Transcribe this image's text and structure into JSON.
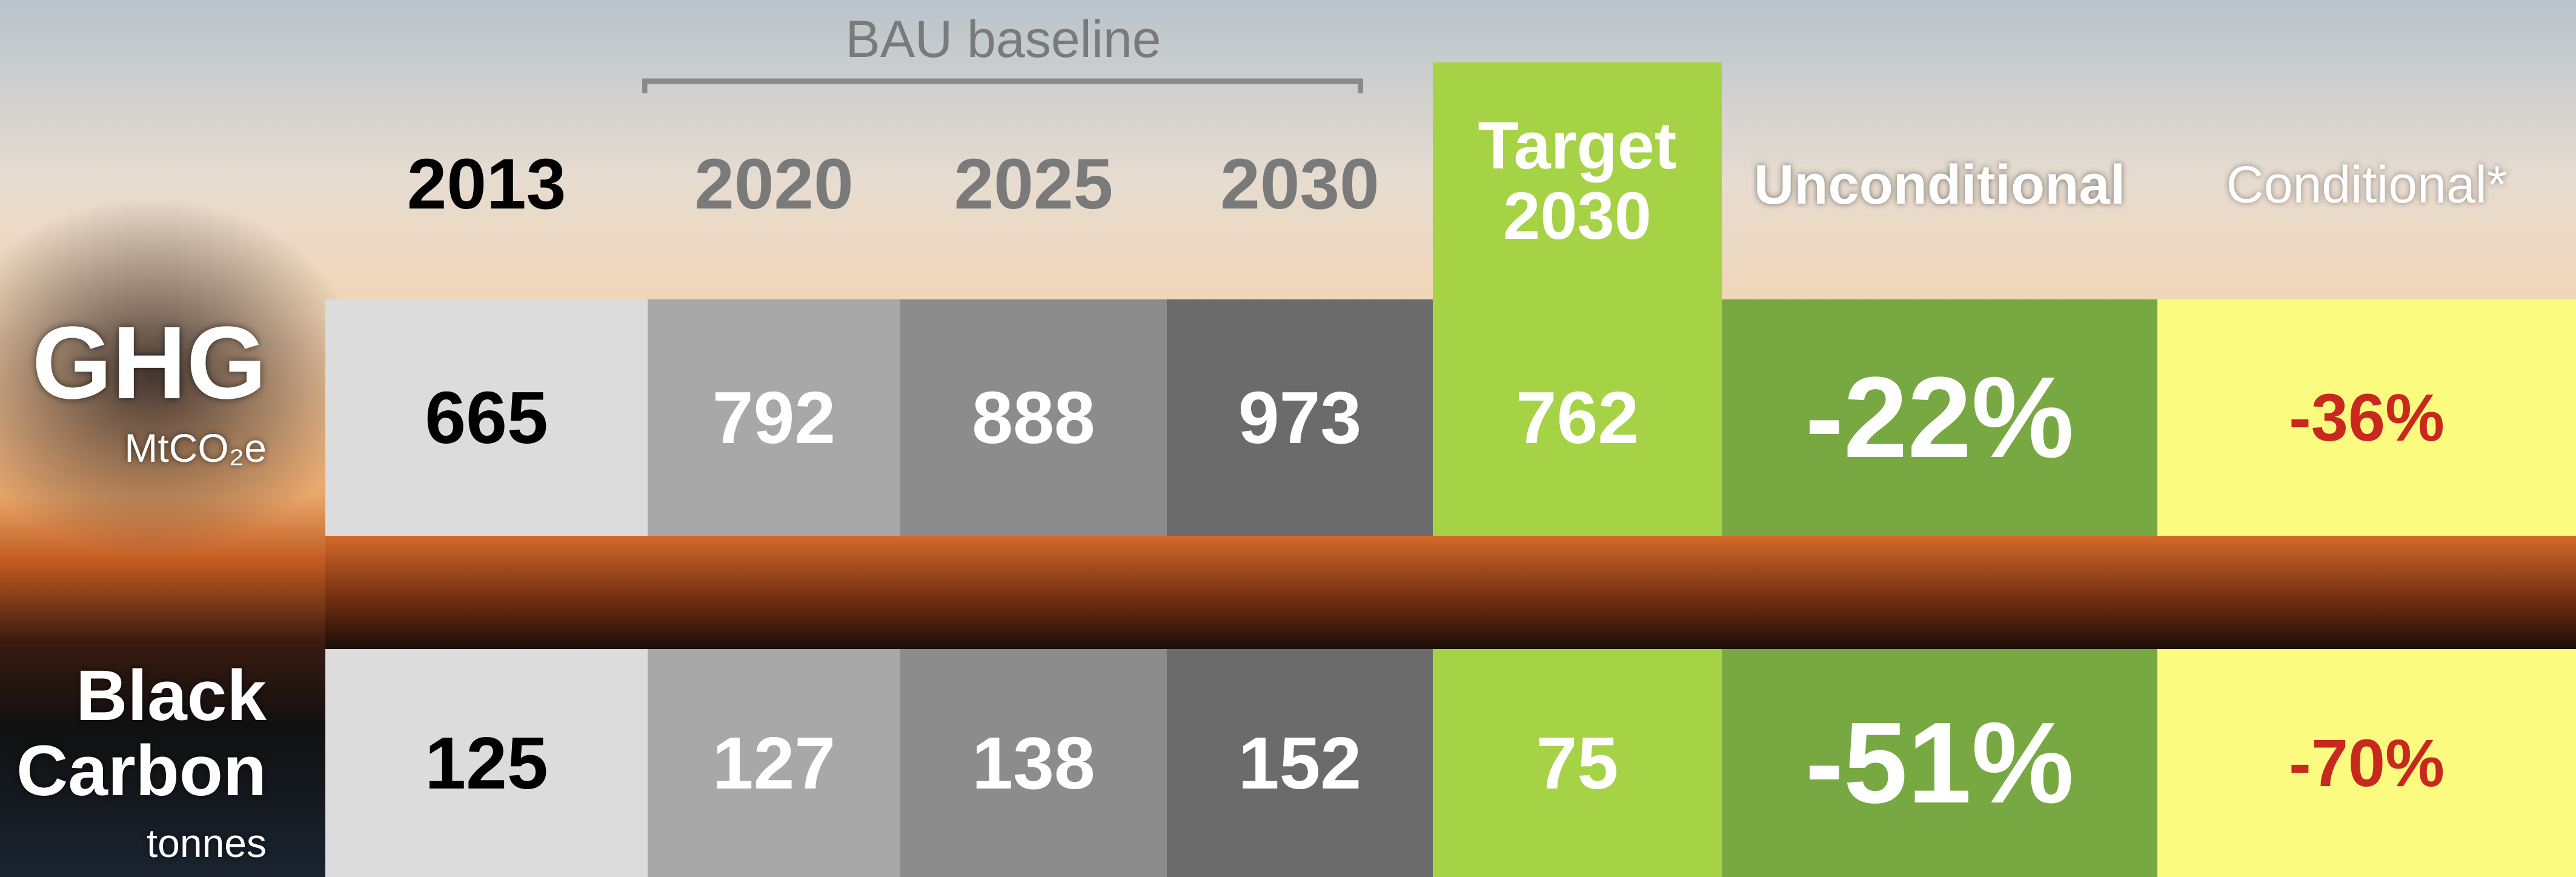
{
  "header": {
    "bau_label": "BAU baseline",
    "columns": [
      "2013",
      "2020",
      "2025",
      "2030",
      "Target 2030",
      "Unconditional",
      "Conditional*"
    ]
  },
  "rows": [
    {
      "label": "GHG",
      "unit": "MtCO₂e",
      "values": [
        "665",
        "792",
        "888",
        "973",
        "762",
        "-22%",
        "-36%"
      ]
    },
    {
      "label": "Black Carbon",
      "unit": "tonnes",
      "values": [
        "125",
        "127",
        "138",
        "152",
        "75",
        "-51%",
        "-70%"
      ]
    }
  ]
}
